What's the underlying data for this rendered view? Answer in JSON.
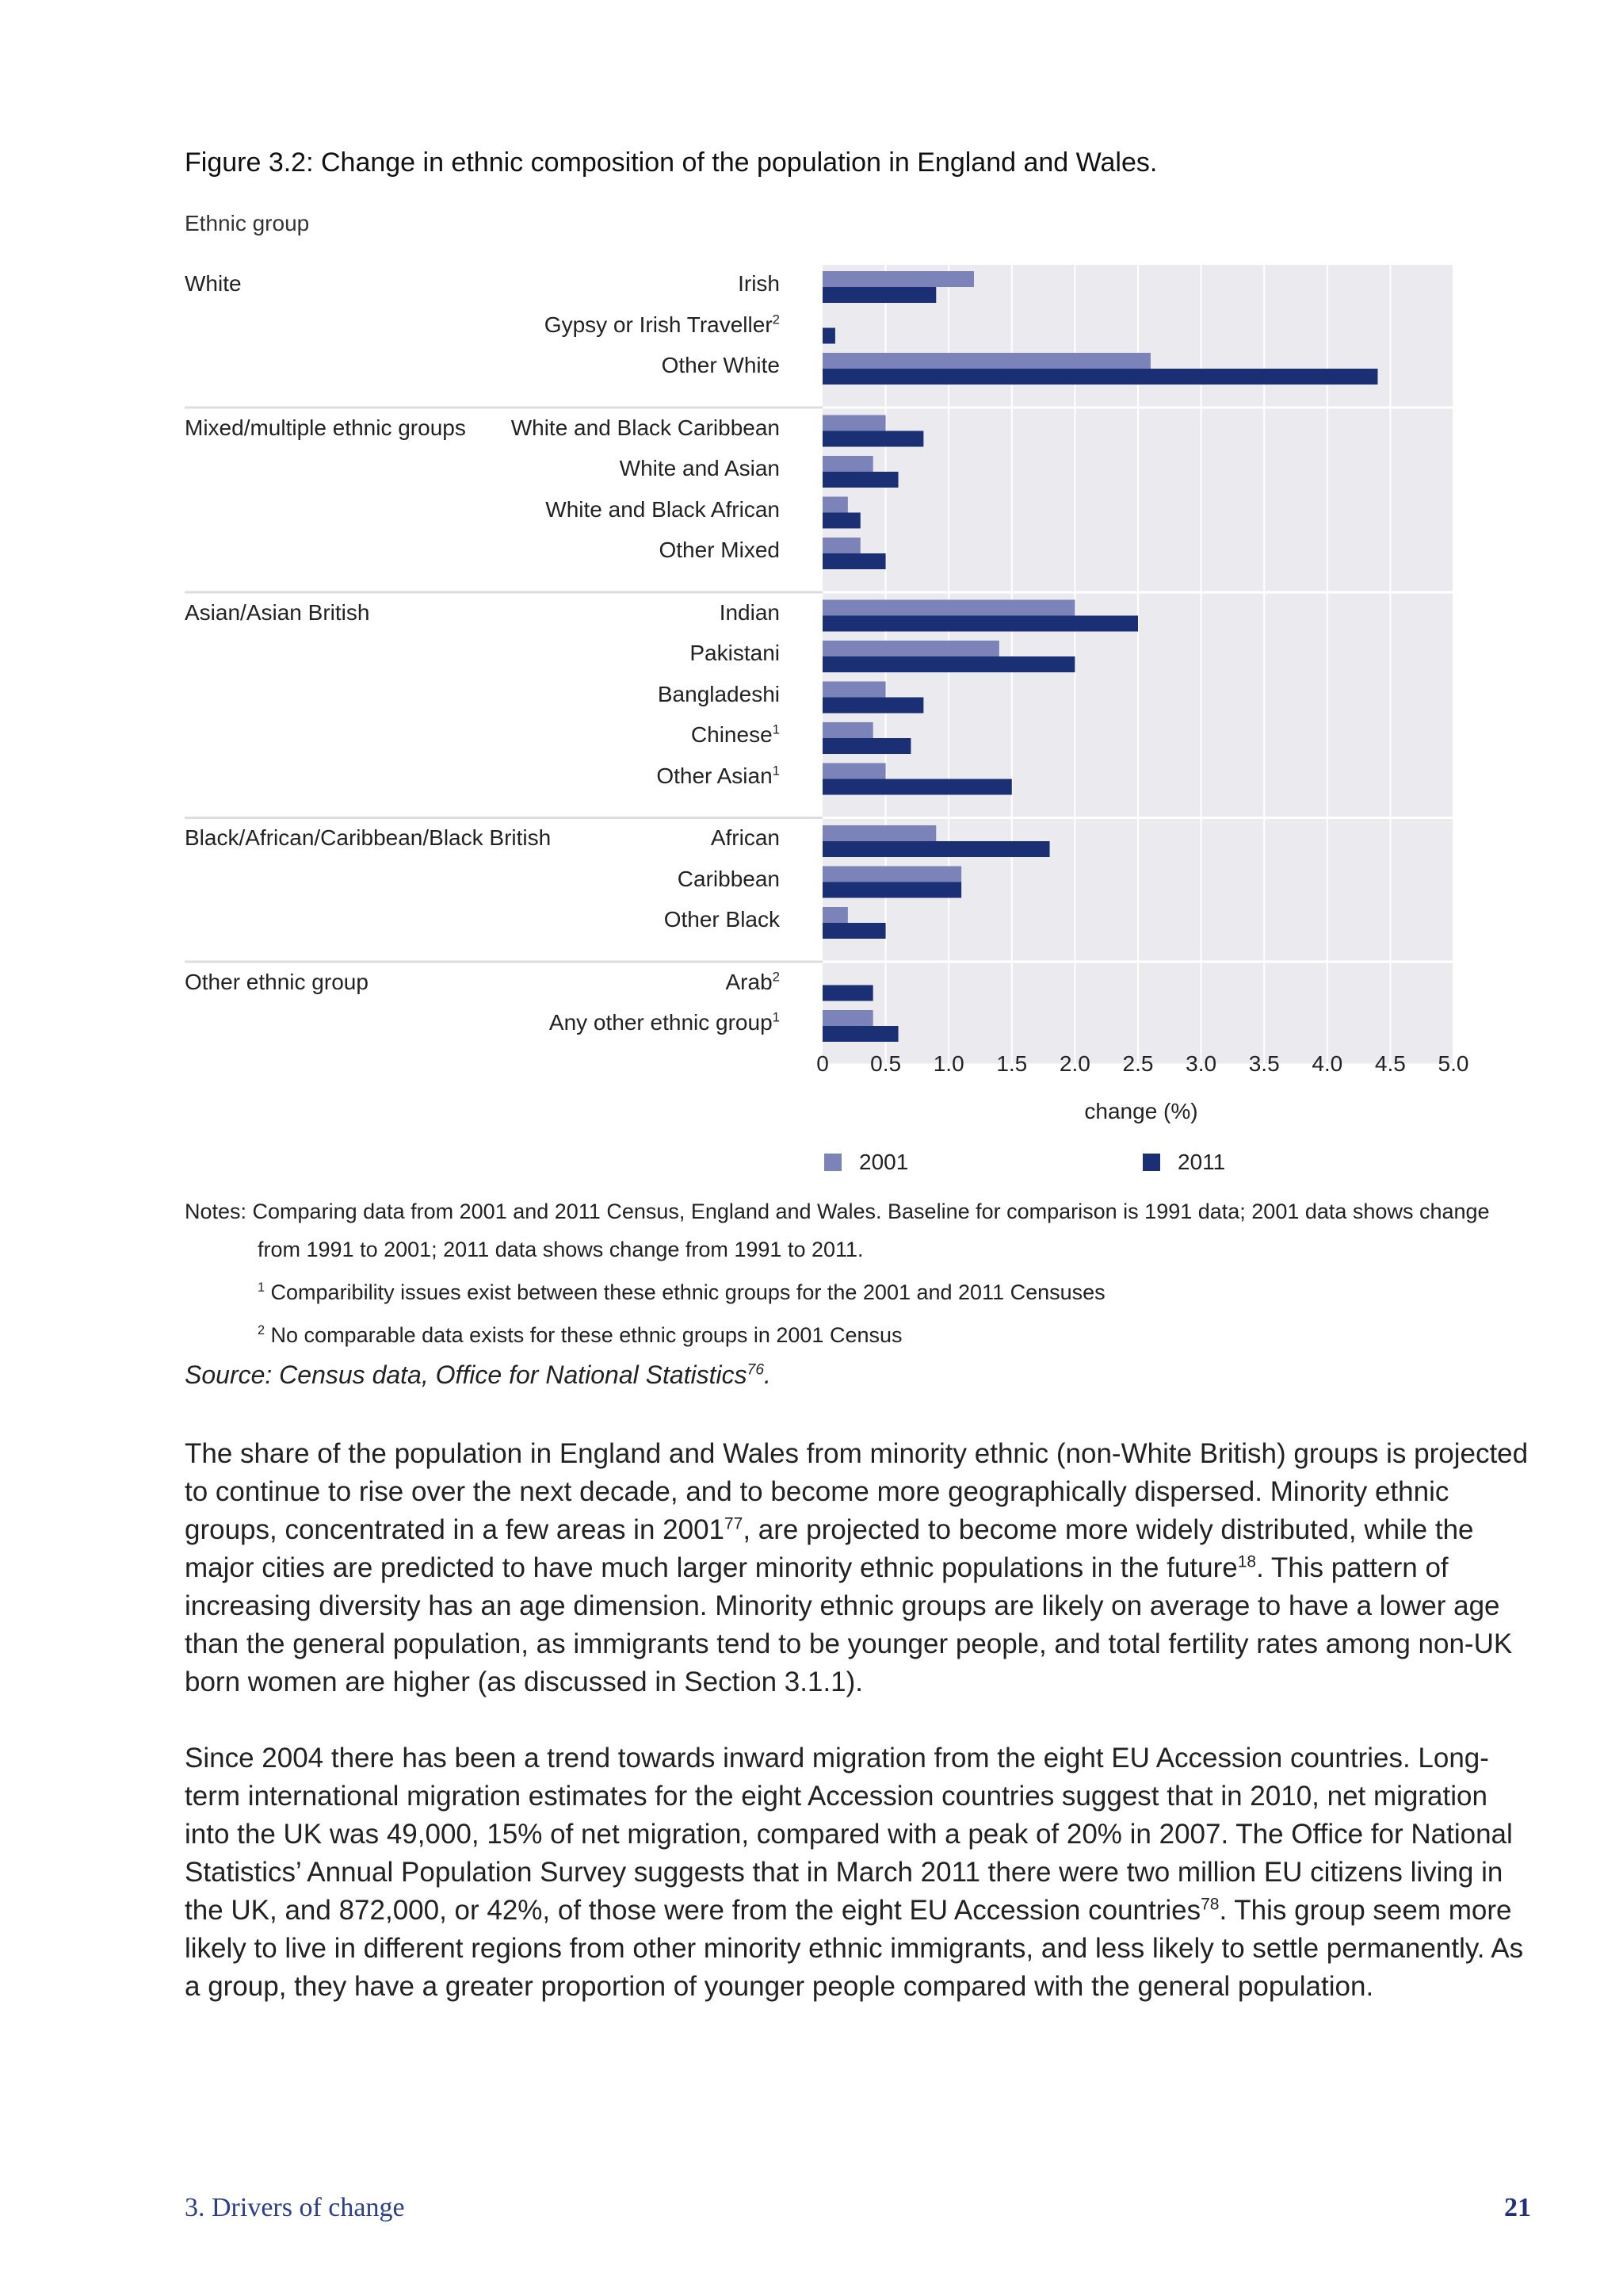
{
  "figure_title": "Figure 3.2: Change in ethnic composition of the population in England and Wales.",
  "ethnic_group_header": "Ethnic group",
  "chart_data": {
    "type": "bar",
    "orientation": "horizontal",
    "xlabel": "change (%)",
    "xlim": [
      0,
      5.0
    ],
    "xticks": [
      "0",
      "0.5",
      "1.0",
      "1.5",
      "2.0",
      "2.5",
      "3.0",
      "3.5",
      "4.0",
      "4.5",
      "5.0"
    ],
    "legend_position": "bottom",
    "colors": {
      "2001": "#7b83b8",
      "2011": "#1b2f74",
      "background": "#ebeaee"
    },
    "series": [
      {
        "name": "2001"
      },
      {
        "name": "2011"
      }
    ],
    "groups": [
      {
        "name": "White",
        "categories": [
          {
            "label": "Irish",
            "sup": "",
            "v2001": 1.2,
            "v2011": 0.9
          },
          {
            "label": "Gypsy or Irish Traveller",
            "sup": "2",
            "v2001": null,
            "v2011": 0.1
          },
          {
            "label": "Other White",
            "sup": "",
            "v2001": 2.6,
            "v2011": 4.4
          }
        ]
      },
      {
        "name": "Mixed/multiple ethnic groups",
        "categories": [
          {
            "label": "White and Black Caribbean",
            "sup": "",
            "v2001": 0.5,
            "v2011": 0.8
          },
          {
            "label": "White and Asian",
            "sup": "",
            "v2001": 0.4,
            "v2011": 0.6
          },
          {
            "label": "White and Black African",
            "sup": "",
            "v2001": 0.2,
            "v2011": 0.3
          },
          {
            "label": "Other Mixed",
            "sup": "",
            "v2001": 0.3,
            "v2011": 0.5
          }
        ]
      },
      {
        "name": "Asian/Asian British",
        "categories": [
          {
            "label": "Indian",
            "sup": "",
            "v2001": 2.0,
            "v2011": 2.5
          },
          {
            "label": "Pakistani",
            "sup": "",
            "v2001": 1.4,
            "v2011": 2.0
          },
          {
            "label": "Bangladeshi",
            "sup": "",
            "v2001": 0.5,
            "v2011": 0.8
          },
          {
            "label": "Chinese",
            "sup": "1",
            "v2001": 0.4,
            "v2011": 0.7
          },
          {
            "label": "Other Asian",
            "sup": "1",
            "v2001": 0.5,
            "v2011": 1.5
          }
        ]
      },
      {
        "name": "Black/African/Caribbean/Black British",
        "categories": [
          {
            "label": "African",
            "sup": "",
            "v2001": 0.9,
            "v2011": 1.8
          },
          {
            "label": "Caribbean",
            "sup": "",
            "v2001": 1.1,
            "v2011": 1.1
          },
          {
            "label": "Other Black",
            "sup": "",
            "v2001": 0.2,
            "v2011": 0.5
          }
        ]
      },
      {
        "name": "Other ethnic group",
        "categories": [
          {
            "label": "Arab",
            "sup": "2",
            "v2001": null,
            "v2011": 0.4
          },
          {
            "label": "Any other ethnic group",
            "sup": "1",
            "v2001": 0.4,
            "v2011": 0.6
          }
        ]
      }
    ]
  },
  "notes": {
    "line1": "Notes: Comparing data from 2001 and 2011 Census, England and Wales. Baseline for comparison is 1991 data; 2001 data shows change",
    "line2": "from 1991 to 2001; 2011 data shows change from 1991 to 2011.",
    "fn1_mark": "1",
    "fn1": "Comparibility issues exist between these ethnic groups for the 2001 and 2011 Censuses",
    "fn2_mark": "2",
    "fn2": "No comparable data exists for these ethnic groups in 2001 Census"
  },
  "source": {
    "text": "Source: Census data, Office for National Statistics",
    "sup": "76",
    "end": "."
  },
  "paragraph1": {
    "a": "The share of the population in England and Wales from minority ethnic (non-White British) groups is projected to continue to rise over the next decade, and to become more geographically dispersed. Minority ethnic groups, concentrated in a few areas in 2001",
    "sup1": "77",
    "b": ", are projected to become more widely distributed, while the major cities are predicted to have much larger minority ethnic populations in the future",
    "sup2": "18",
    "c": ". This pattern of increasing diversity has an age dimension. Minority ethnic groups are likely on average to have a lower age than the general population, as immigrants tend to be younger people, and total fertility rates among non-UK born women are higher (as discussed in Section 3.1.1)."
  },
  "paragraph2": {
    "a": "Since 2004 there has been a trend towards inward migration from the eight EU Accession countries. Long-term international migration estimates for the eight Accession countries suggest that in 2010, net migration into the UK was 49,000, 15% of net migration, compared with a peak of 20% in 2007. The Office for National Statistics’ Annual Population Survey suggests that in March 2011 there were two million EU citizens living in the UK, and 872,000, or 42%, of those were from the eight EU Accession countries",
    "sup1": "78",
    "b": ". This group seem more likely to live in different regions from other minority ethnic immigrants, and less likely to settle permanently. As a group, they have a greater proportion of younger people compared with the general population."
  },
  "footer": {
    "section": "3. Drivers of change",
    "page": "21"
  }
}
